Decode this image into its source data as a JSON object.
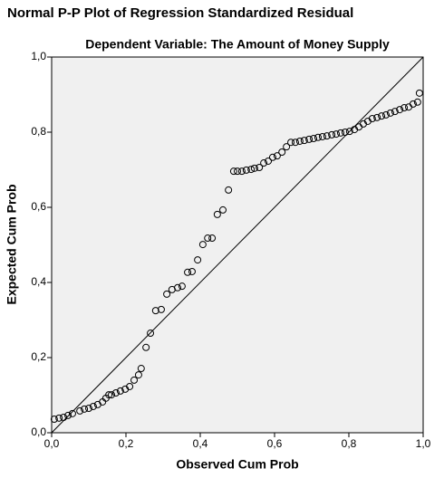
{
  "chart_data": {
    "type": "scatter",
    "title": "Normal P-P Plot of Regression Standardized Residual",
    "subtitle": "Dependent Variable: The Amount of Money Supply",
    "x_label": "Observed Cum Prob",
    "y_label": "Expected Cum Prob",
    "xlim": [
      0,
      1
    ],
    "ylim": [
      0,
      1
    ],
    "xticks": [
      {
        "value": 0,
        "label": "0,0"
      },
      {
        "value": 0.2,
        "label": "0,2"
      },
      {
        "value": 0.4,
        "label": "0,4"
      },
      {
        "value": 0.6,
        "label": "0,6"
      },
      {
        "value": 0.8,
        "label": "0,8"
      },
      {
        "value": 1,
        "label": "1,0"
      }
    ],
    "yticks": [
      {
        "value": 0,
        "label": "0,0"
      },
      {
        "value": 0.2,
        "label": "0,2"
      },
      {
        "value": 0.4,
        "label": "0,4"
      },
      {
        "value": 0.6,
        "label": "0,6"
      },
      {
        "value": 0.8,
        "label": "0,8"
      },
      {
        "value": 1,
        "label": "1,0"
      }
    ],
    "background": "#f0f0f0",
    "series": [
      {
        "color": "#000000",
        "x": [
          0.007,
          0.02,
          0.032,
          0.044,
          0.056,
          0.076,
          0.088,
          0.1,
          0.112,
          0.124,
          0.137,
          0.146,
          0.154,
          0.161,
          0.173,
          0.185,
          0.198,
          0.21,
          0.222,
          0.234,
          0.241,
          0.254,
          0.266,
          0.28,
          0.295,
          0.31,
          0.324,
          0.339,
          0.351,
          0.366,
          0.378,
          0.393,
          0.407,
          0.42,
          0.432,
          0.446,
          0.461,
          0.476,
          0.49,
          0.5,
          0.512,
          0.524,
          0.537,
          0.546,
          0.559,
          0.571,
          0.583,
          0.595,
          0.607,
          0.62,
          0.632,
          0.644,
          0.656,
          0.668,
          0.68,
          0.693,
          0.705,
          0.717,
          0.729,
          0.741,
          0.754,
          0.766,
          0.778,
          0.79,
          0.802,
          0.815,
          0.827,
          0.839,
          0.851,
          0.863,
          0.876,
          0.888,
          0.9,
          0.912,
          0.924,
          0.937,
          0.949,
          0.961,
          0.973,
          0.985,
          0.99
        ],
        "values": [
          0.036,
          0.039,
          0.041,
          0.046,
          0.051,
          0.058,
          0.063,
          0.065,
          0.07,
          0.075,
          0.082,
          0.092,
          0.101,
          0.101,
          0.106,
          0.111,
          0.116,
          0.123,
          0.14,
          0.154,
          0.171,
          0.227,
          0.265,
          0.325,
          0.328,
          0.369,
          0.381,
          0.386,
          0.39,
          0.427,
          0.429,
          0.46,
          0.501,
          0.518,
          0.518,
          0.581,
          0.593,
          0.646,
          0.696,
          0.696,
          0.696,
          0.699,
          0.701,
          0.704,
          0.706,
          0.718,
          0.723,
          0.733,
          0.737,
          0.747,
          0.761,
          0.773,
          0.773,
          0.776,
          0.778,
          0.781,
          0.783,
          0.786,
          0.788,
          0.79,
          0.793,
          0.795,
          0.798,
          0.8,
          0.802,
          0.807,
          0.814,
          0.822,
          0.829,
          0.836,
          0.839,
          0.843,
          0.846,
          0.851,
          0.855,
          0.86,
          0.865,
          0.867,
          0.875,
          0.88,
          0.904
        ]
      }
    ]
  }
}
